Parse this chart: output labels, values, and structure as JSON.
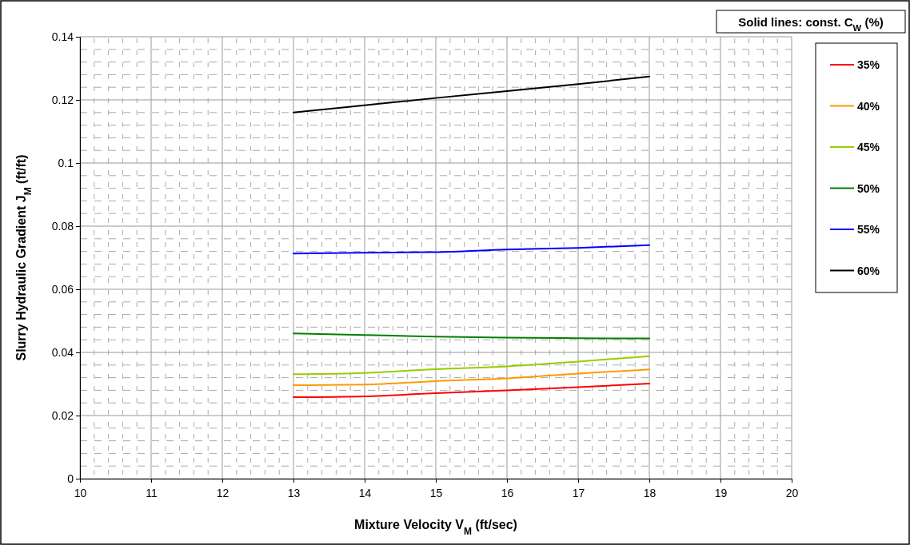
{
  "chart_data": {
    "type": "line",
    "xlabel": "Mixture Velocity  V$_{M}$ (ft/sec)",
    "ylabel": "Slurry Hydraulic Gradient  J$_{M}$ (ft/ft)",
    "legend_title": "Solid lines: const. C$_{W}$ (%)",
    "x": [
      13,
      14,
      15,
      16,
      17,
      18
    ],
    "series": [
      {
        "name": "35%",
        "color": "#ff0000",
        "values": [
          0.0258,
          0.0261,
          0.0271,
          0.028,
          0.029,
          0.0301
        ]
      },
      {
        "name": "40%",
        "color": "#ff9900",
        "values": [
          0.0296,
          0.0298,
          0.0309,
          0.0318,
          0.0333,
          0.0346
        ]
      },
      {
        "name": "45%",
        "color": "#99cc00",
        "values": [
          0.0331,
          0.0335,
          0.0347,
          0.0356,
          0.0371,
          0.0388
        ]
      },
      {
        "name": "50%",
        "color": "#008000",
        "values": [
          0.046,
          0.0455,
          0.045,
          0.0447,
          0.0445,
          0.0444
        ]
      },
      {
        "name": "55%",
        "color": "#0000ff",
        "values": [
          0.0713,
          0.0716,
          0.0718,
          0.0726,
          0.0731,
          0.074
        ]
      },
      {
        "name": "60%",
        "color": "#000000",
        "values": [
          0.116,
          0.1183,
          0.1206,
          0.1228,
          0.125,
          0.1274
        ]
      }
    ],
    "xlim": [
      10,
      20
    ],
    "xticks": [
      10,
      11,
      12,
      13,
      14,
      15,
      16,
      17,
      18,
      19,
      20
    ],
    "ylim": [
      0,
      0.14
    ],
    "yticks": [
      0,
      0.02,
      0.04,
      0.06,
      0.08,
      0.1,
      0.12,
      0.14
    ],
    "grid": true,
    "legend": "right",
    "marker": "none",
    "line_style": "solid"
  }
}
